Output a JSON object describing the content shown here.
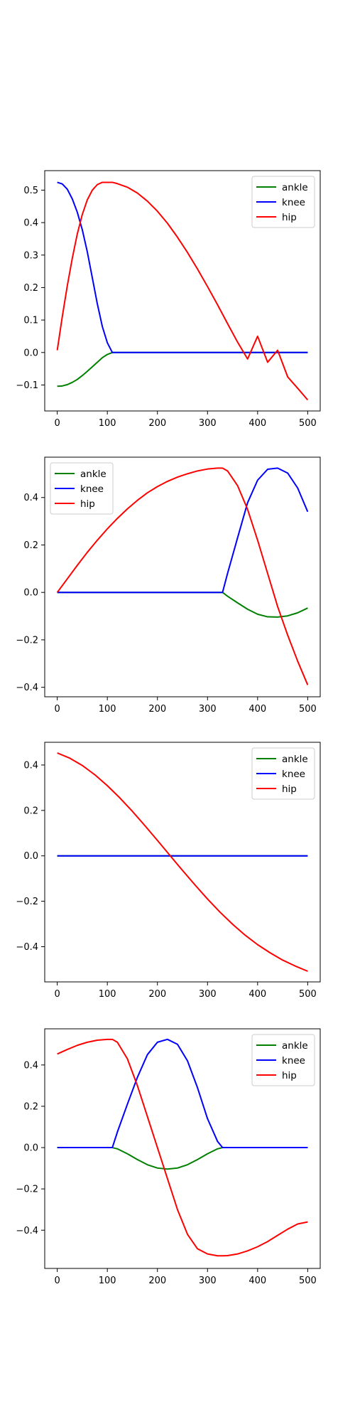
{
  "chart_data": [
    {
      "type": "line",
      "legend_position": "top-right",
      "grid": false,
      "xlim": [
        -25,
        525
      ],
      "ylim": [
        -0.18,
        0.56
      ],
      "xticks": [
        0,
        100,
        200,
        300,
        400,
        500
      ],
      "yticks": [
        -0.1,
        0.0,
        0.1,
        0.2,
        0.3,
        0.4,
        0.5
      ],
      "ytick_labels": [
        "−0.1",
        "0.0",
        "0.1",
        "0.2",
        "0.3",
        "0.4",
        "0.5"
      ],
      "x": [
        0,
        10,
        20,
        30,
        40,
        50,
        60,
        70,
        80,
        90,
        100,
        110,
        120,
        140,
        160,
        180,
        200,
        220,
        240,
        260,
        280,
        300,
        320,
        340,
        360,
        380,
        400,
        420,
        440,
        460,
        480,
        500
      ],
      "series": [
        {
          "name": "ankle",
          "color": "#008000",
          "values": [
            -0.104,
            -0.103,
            -0.099,
            -0.092,
            -0.083,
            -0.071,
            -0.058,
            -0.044,
            -0.03,
            -0.016,
            -0.006,
            0.0,
            0.0,
            0.0,
            0.0,
            0.0,
            0.0,
            0.0,
            0.0,
            0.0,
            0.0,
            0.0,
            0.0,
            0.0,
            0.0,
            0.0,
            0.0,
            0.0,
            0.0,
            0.0,
            0.0,
            0.0
          ]
        },
        {
          "name": "knee",
          "color": "#0000ff",
          "values": [
            0.524,
            0.519,
            0.503,
            0.473,
            0.432,
            0.378,
            0.31,
            0.23,
            0.15,
            0.08,
            0.03,
            0.0,
            0.0,
            0.0,
            0.0,
            0.0,
            0.0,
            0.0,
            0.0,
            0.0,
            0.0,
            0.0,
            0.0,
            0.0,
            0.0,
            0.0,
            0.0,
            0.0,
            0.0,
            0.0,
            0.0,
            0.0
          ]
        },
        {
          "name": "hip",
          "color": "#ff0000",
          "values": [
            0.007,
            0.11,
            0.205,
            0.29,
            0.365,
            0.425,
            0.47,
            0.5,
            0.517,
            0.524,
            0.524,
            0.524,
            0.52,
            0.509,
            0.491,
            0.466,
            0.435,
            0.398,
            0.355,
            0.308,
            0.257,
            0.203,
            0.147,
            0.089,
            0.032,
            -0.02,
            0.05,
            -0.03,
            0.007,
            -0.075,
            -0.11,
            -0.146
          ]
        }
      ]
    },
    {
      "type": "line",
      "legend_position": "top-left",
      "grid": false,
      "xlim": [
        -25,
        525
      ],
      "ylim": [
        -0.44,
        0.57
      ],
      "xticks": [
        0,
        100,
        200,
        300,
        400,
        500
      ],
      "yticks": [
        -0.4,
        -0.2,
        0.0,
        0.2,
        0.4
      ],
      "ytick_labels": [
        "−0.4",
        "−0.2",
        "0.0",
        "0.2",
        "0.4"
      ],
      "x": [
        0,
        20,
        40,
        60,
        80,
        100,
        120,
        140,
        160,
        180,
        200,
        220,
        240,
        260,
        280,
        300,
        320,
        330,
        340,
        360,
        380,
        400,
        420,
        440,
        460,
        480,
        500
      ],
      "series": [
        {
          "name": "ankle",
          "color": "#008000",
          "values": [
            0.0,
            0.0,
            0.0,
            0.0,
            0.0,
            0.0,
            0.0,
            0.0,
            0.0,
            0.0,
            0.0,
            0.0,
            0.0,
            0.0,
            0.0,
            0.0,
            0.0,
            0.0,
            -0.016,
            -0.044,
            -0.071,
            -0.092,
            -0.103,
            -0.104,
            -0.099,
            -0.086,
            -0.066
          ]
        },
        {
          "name": "knee",
          "color": "#0000ff",
          "values": [
            0.0,
            0.0,
            0.0,
            0.0,
            0.0,
            0.0,
            0.0,
            0.0,
            0.0,
            0.0,
            0.0,
            0.0,
            0.0,
            0.0,
            0.0,
            0.0,
            0.0,
            0.0,
            0.08,
            0.23,
            0.378,
            0.473,
            0.519,
            0.524,
            0.503,
            0.44,
            0.34
          ]
        },
        {
          "name": "hip",
          "color": "#ff0000",
          "values": [
            0.0,
            0.057,
            0.114,
            0.169,
            0.22,
            0.268,
            0.312,
            0.352,
            0.388,
            0.42,
            0.446,
            0.468,
            0.486,
            0.5,
            0.512,
            0.52,
            0.524,
            0.524,
            0.512,
            0.45,
            0.35,
            0.22,
            0.08,
            -0.06,
            -0.18,
            -0.29,
            -0.39
          ]
        }
      ]
    },
    {
      "type": "line",
      "legend_position": "top-right",
      "grid": false,
      "xlim": [
        -25,
        525
      ],
      "ylim": [
        -0.555,
        0.5
      ],
      "xticks": [
        0,
        100,
        200,
        300,
        400,
        500
      ],
      "yticks": [
        -0.4,
        -0.2,
        0.0,
        0.2,
        0.4
      ],
      "ytick_labels": [
        "−0.4",
        "−0.2",
        "0.0",
        "0.2",
        "0.4"
      ],
      "x": [
        0,
        25,
        50,
        75,
        100,
        125,
        150,
        175,
        200,
        225,
        250,
        275,
        300,
        325,
        350,
        375,
        400,
        425,
        450,
        475,
        500
      ],
      "series": [
        {
          "name": "ankle",
          "color": "#008000",
          "values": [
            0.0,
            0.0,
            0.0,
            0.0,
            0.0,
            0.0,
            0.0,
            0.0,
            0.0,
            0.0,
            0.0,
            0.0,
            0.0,
            0.0,
            0.0,
            0.0,
            0.0,
            0.0,
            0.0,
            0.0,
            0.0
          ]
        },
        {
          "name": "knee",
          "color": "#0000ff",
          "values": [
            0.0,
            0.0,
            0.0,
            0.0,
            0.0,
            0.0,
            0.0,
            0.0,
            0.0,
            0.0,
            0.0,
            0.0,
            0.0,
            0.0,
            0.0,
            0.0,
            0.0,
            0.0,
            0.0,
            0.0,
            0.0
          ]
        },
        {
          "name": "hip",
          "color": "#ff0000",
          "values": [
            0.453,
            0.43,
            0.398,
            0.357,
            0.309,
            0.255,
            0.196,
            0.133,
            0.068,
            0.002,
            -0.064,
            -0.128,
            -0.19,
            -0.248,
            -0.301,
            -0.349,
            -0.391,
            -0.427,
            -0.459,
            -0.485,
            -0.508
          ]
        }
      ]
    },
    {
      "type": "line",
      "legend_position": "top-right",
      "grid": false,
      "xlim": [
        -25,
        525
      ],
      "ylim": [
        -0.585,
        0.575
      ],
      "xticks": [
        0,
        100,
        200,
        300,
        400,
        500
      ],
      "yticks": [
        -0.4,
        -0.2,
        0.0,
        0.2,
        0.4
      ],
      "ytick_labels": [
        "−0.4",
        "−0.2",
        "0.0",
        "0.2",
        "0.4"
      ],
      "x": [
        0,
        20,
        40,
        60,
        80,
        100,
        110,
        120,
        140,
        160,
        180,
        200,
        220,
        240,
        260,
        280,
        300,
        320,
        330,
        340,
        360,
        380,
        400,
        420,
        440,
        460,
        480,
        500
      ],
      "series": [
        {
          "name": "ankle",
          "color": "#008000",
          "values": [
            0.0,
            0.0,
            0.0,
            0.0,
            0.0,
            0.0,
            0.0,
            -0.006,
            -0.03,
            -0.058,
            -0.083,
            -0.099,
            -0.104,
            -0.099,
            -0.083,
            -0.058,
            -0.03,
            -0.006,
            0.0,
            0.0,
            0.0,
            0.0,
            0.0,
            0.0,
            0.0,
            0.0,
            0.0,
            0.0
          ]
        },
        {
          "name": "knee",
          "color": "#0000ff",
          "values": [
            0.0,
            0.0,
            0.0,
            0.0,
            0.0,
            0.0,
            0.0,
            0.075,
            0.21,
            0.34,
            0.45,
            0.51,
            0.524,
            0.5,
            0.42,
            0.29,
            0.14,
            0.03,
            0.0,
            0.0,
            0.0,
            0.0,
            0.0,
            0.0,
            0.0,
            0.0,
            0.0,
            0.0
          ]
        },
        {
          "name": "hip",
          "color": "#ff0000",
          "values": [
            0.453,
            0.475,
            0.495,
            0.51,
            0.52,
            0.524,
            0.524,
            0.51,
            0.43,
            0.3,
            0.15,
            0.0,
            -0.15,
            -0.3,
            -0.42,
            -0.49,
            -0.515,
            -0.524,
            -0.524,
            -0.523,
            -0.515,
            -0.5,
            -0.48,
            -0.455,
            -0.425,
            -0.395,
            -0.37,
            -0.36
          ]
        }
      ]
    }
  ]
}
